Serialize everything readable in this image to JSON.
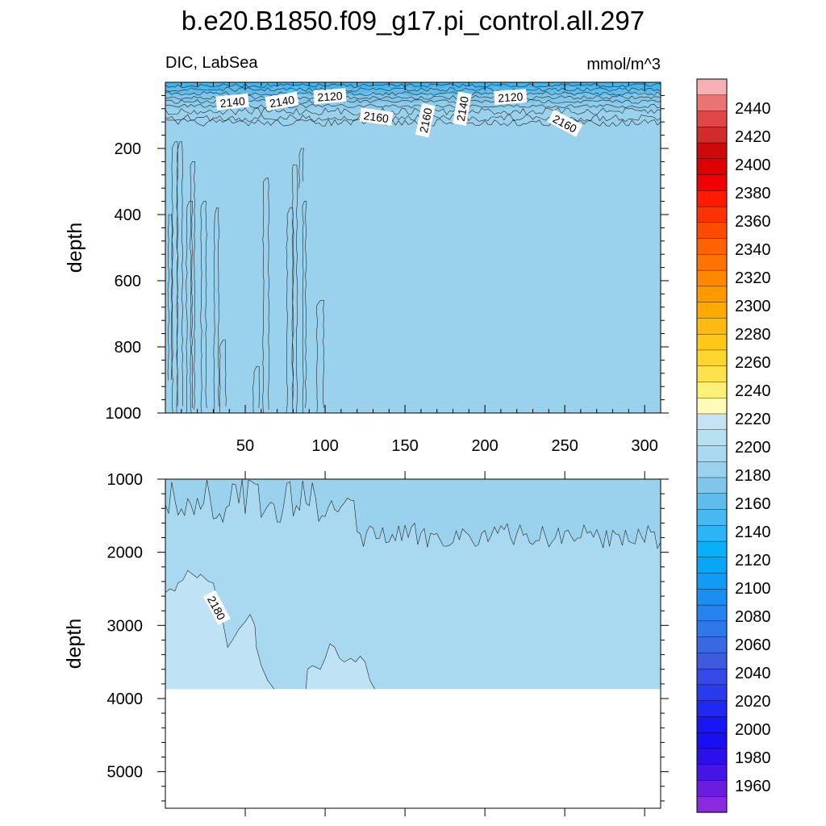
{
  "chart_data": [
    {
      "type": "contour",
      "title": "b.e20.B1850.f09_g17.pi_control.all.297",
      "subtitle_left": "DIC, LabSea",
      "subtitle_right": "mmol/m^3",
      "ylabel": "depth",
      "xlim": [
        0,
        310
      ],
      "ylim": [
        0,
        1000
      ],
      "y_reversed": true,
      "x_ticks": [
        50,
        100,
        150,
        200,
        250,
        300
      ],
      "y_ticks": [
        200,
        400,
        600,
        800,
        1000
      ],
      "background_value": "2160-2170",
      "contour_labels": [
        {
          "text": "2140",
          "x": 42,
          "y": 60
        },
        {
          "text": "2140",
          "x": 73,
          "y": 58
        },
        {
          "text": "2120",
          "x": 103,
          "y": 43
        },
        {
          "text": "2160",
          "x": 132,
          "y": 105
        },
        {
          "text": "2160",
          "x": 163,
          "y": 115
        },
        {
          "text": "2140",
          "x": 186,
          "y": 80
        },
        {
          "text": "2120",
          "x": 216,
          "y": 45
        },
        {
          "text": "2160",
          "x": 250,
          "y": 125
        }
      ]
    },
    {
      "type": "contour",
      "ylabel": "depth",
      "xlim": [
        0,
        310
      ],
      "ylim": [
        1000,
        5500
      ],
      "y_reversed": true,
      "y_ticks": [
        1000,
        2000,
        3000,
        4000,
        5000
      ],
      "bottom_of_data": 3870,
      "contour_labels": [
        {
          "text": "2180",
          "x": 32,
          "y": 2760
        }
      ]
    }
  ],
  "colorbar": {
    "labels": [
      "2440",
      "2420",
      "2400",
      "2380",
      "2360",
      "2340",
      "2320",
      "2300",
      "2280",
      "2260",
      "2240",
      "2220",
      "2200",
      "2180",
      "2160",
      "2140",
      "2120",
      "2100",
      "2080",
      "2060",
      "2040",
      "2020",
      "2000",
      "1980",
      "1960"
    ],
    "colors_top_to_bottom": [
      "#f7b1b3",
      "#ea7373",
      "#e04848",
      "#d22b2b",
      "#cc0a0a",
      "#de0000",
      "#f00000",
      "#ff1a00",
      "#ff3300",
      "#ff4b00",
      "#ff6300",
      "#ff7300",
      "#ff8800",
      "#ff9900",
      "#ffaa00",
      "#ffbb11",
      "#ffc719",
      "#ffd52e",
      "#ffe04d",
      "#fff178",
      "#fffbb8",
      "#c5e4f3",
      "#b8e0f3",
      "#a9d9f0",
      "#9ad2ee",
      "#80c6ea",
      "#5fbbea",
      "#48b9f0",
      "#2bb5f5",
      "#0ab0f7",
      "#08a6f7",
      "#109bf5",
      "#1b8ef2",
      "#2682ef",
      "#2f78ea",
      "#3869e1",
      "#3e5ade",
      "#3548e8",
      "#2a3aed",
      "#1f29f2",
      "#1717f5",
      "#1a0ff2",
      "#2c10ea",
      "#4515e6",
      "#6a1ce0",
      "#8a2ae0"
    ]
  }
}
